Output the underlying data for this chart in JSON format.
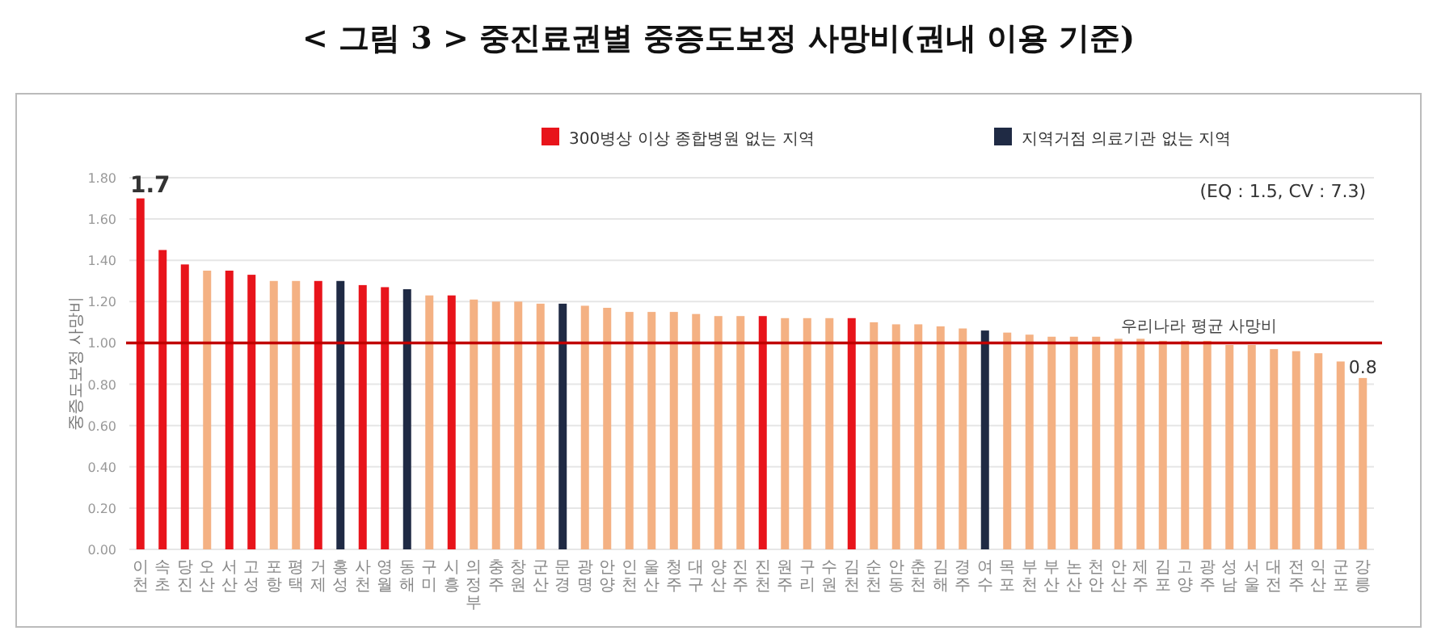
{
  "chart_data": {
    "type": "bar",
    "title": "< 그림 3 > 중진료권별 중증도보정 사망비(권내 이용 기준)",
    "ylabel": "중증도보정 사망비",
    "categories": [
      "이천",
      "속초",
      "당진",
      "오산",
      "서산",
      "고성",
      "포항",
      "평택",
      "거제",
      "홍성",
      "사천",
      "영월",
      "동해",
      "구미",
      "시흥",
      "의정부",
      "충주",
      "창원",
      "군산",
      "문경",
      "광명",
      "안양",
      "인천",
      "울산",
      "청주",
      "대구",
      "양산",
      "진주",
      "진천",
      "원주",
      "구리",
      "수원",
      "김천",
      "순천",
      "안동",
      "춘천",
      "김해",
      "경주",
      "여수",
      "목포",
      "부천",
      "부산",
      "논산",
      "천안",
      "안산",
      "제주",
      "김포",
      "고양",
      "광주",
      "성남",
      "서울",
      "대전",
      "전주",
      "익산",
      "군포",
      "강릉"
    ],
    "series": [
      {
        "name": "300병상 이상 종합병원 없는 지역",
        "color": "#e8141b",
        "values": [
          1.7,
          1.45,
          1.38,
          null,
          1.35,
          1.33,
          null,
          null,
          1.3,
          null,
          1.28,
          1.27,
          null,
          null,
          1.23,
          null,
          null,
          null,
          null,
          null,
          null,
          null,
          null,
          null,
          null,
          null,
          null,
          null,
          1.13,
          null,
          null,
          null,
          1.12,
          null,
          null,
          null,
          null,
          null,
          null,
          null,
          null,
          null,
          null,
          null,
          null,
          null,
          null,
          null,
          null,
          null,
          null,
          null,
          null,
          null,
          null,
          null
        ],
        "value_labels": [
          "1.7",
          null,
          null,
          null,
          null,
          null,
          null,
          null,
          null,
          null,
          null,
          null,
          null,
          null,
          null,
          null,
          null,
          null,
          null,
          null,
          null,
          null,
          null,
          null,
          null,
          null,
          null,
          null,
          null,
          null,
          null,
          null,
          null,
          null,
          null,
          null,
          null,
          null,
          null,
          null,
          null,
          null,
          null,
          null,
          null,
          null,
          null,
          null,
          null,
          null,
          null,
          null,
          null,
          null,
          null,
          null
        ]
      },
      {
        "name": "지역거점 의료기관 없는 지역",
        "color": "#1f2a44",
        "values": [
          null,
          null,
          null,
          null,
          null,
          null,
          null,
          null,
          null,
          1.3,
          null,
          null,
          1.26,
          null,
          null,
          null,
          null,
          null,
          null,
          1.19,
          null,
          null,
          null,
          null,
          null,
          null,
          null,
          null,
          null,
          null,
          null,
          null,
          null,
          null,
          null,
          null,
          null,
          null,
          1.06,
          null,
          null,
          null,
          null,
          null,
          null,
          null,
          null,
          null,
          null,
          null,
          null,
          null,
          null,
          null,
          null,
          null
        ]
      },
      {
        "color": "#f4b183",
        "values": [
          null,
          null,
          null,
          1.35,
          null,
          null,
          1.3,
          1.3,
          null,
          null,
          null,
          null,
          null,
          1.23,
          null,
          1.21,
          1.2,
          1.2,
          1.19,
          null,
          1.18,
          1.17,
          1.15,
          1.15,
          1.15,
          1.14,
          1.13,
          1.13,
          null,
          1.12,
          1.12,
          1.12,
          null,
          1.1,
          1.09,
          1.09,
          1.08,
          1.07,
          null,
          1.05,
          1.04,
          1.03,
          1.03,
          1.03,
          1.02,
          1.02,
          1.01,
          1.01,
          1.01,
          0.99,
          0.99,
          0.97,
          0.96,
          0.95,
          0.91,
          0.83
        ],
        "value_labels": [
          null,
          null,
          null,
          null,
          null,
          null,
          null,
          null,
          null,
          null,
          null,
          null,
          null,
          null,
          null,
          null,
          null,
          null,
          null,
          null,
          null,
          null,
          null,
          null,
          null,
          null,
          null,
          null,
          null,
          null,
          null,
          null,
          null,
          null,
          null,
          null,
          null,
          null,
          null,
          null,
          null,
          null,
          null,
          null,
          null,
          null,
          null,
          null,
          null,
          null,
          null,
          null,
          null,
          null,
          null,
          "0.8"
        ]
      }
    ],
    "ylim": [
      0,
      1.8
    ],
    "yticks": [
      {
        "value": 0,
        "label": "0.00"
      },
      {
        "value": 0.2,
        "label": "0.20"
      },
      {
        "value": 0.4,
        "label": "0.40"
      },
      {
        "value": 0.6,
        "label": "0.60"
      },
      {
        "value": 0.8,
        "label": "0.80"
      },
      {
        "value": 1,
        "label": "1.00"
      },
      {
        "value": 1.2,
        "label": "1.20"
      },
      {
        "value": 1.4,
        "label": "1.40"
      },
      {
        "value": 1.6,
        "label": "1.60"
      },
      {
        "value": 1.8,
        "label": "1.80"
      }
    ],
    "grid": "y",
    "legend": "top",
    "ref_lines": [
      {
        "axis": "y",
        "value": 1,
        "label": "우리나라 평균 사망비",
        "color": "#c00000"
      }
    ],
    "annotations": [
      "(EQ : 1.5, CV : 7.3)"
    ]
  }
}
